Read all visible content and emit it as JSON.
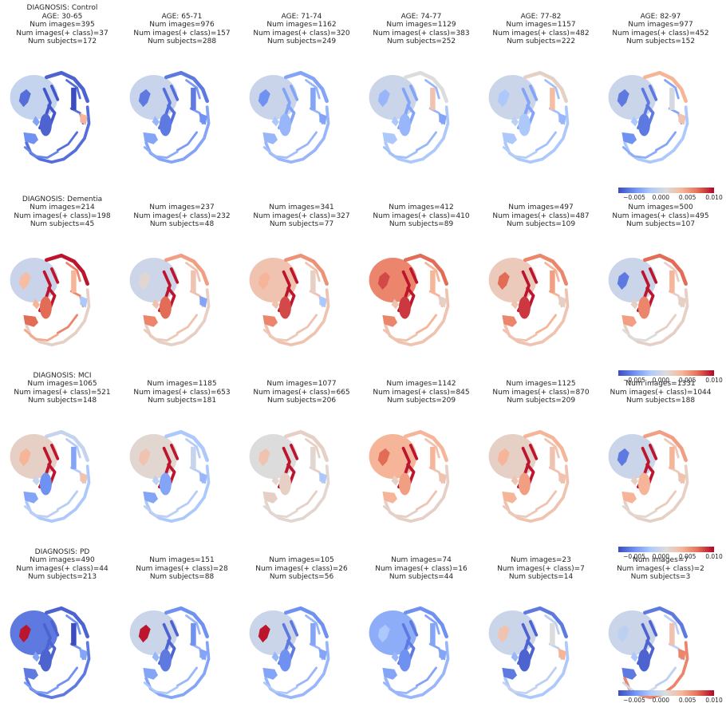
{
  "chart_data": {
    "type": "heatmap",
    "description_note": "",
    "colormap": "coolwarm",
    "colorbar": {
      "range": [
        -0.008,
        0.01
      ],
      "ticks": [
        "−0.005",
        "0.000",
        "0.005",
        "0.010"
      ],
      "tick_values": [
        -0.005,
        0.0,
        0.005,
        0.01
      ]
    },
    "rows": [
      {
        "diagnosis": "DIAGNOSIS: Control",
        "panels": [
          {
            "lines": [
              "DIAGNOSIS: Control",
              "AGE: 30-65",
              "Num images=395",
              "Num images(+ class)=37",
              "Num subjects=172"
            ],
            "regions": {
              "wm": -0.0006,
              "thal": -0.0075,
              "cn": -0.008,
              "put": -0.007,
              "cerebc": -0.0055,
              "cerebw": -0.0065,
              "cortex_a": -0.007,
              "cortex_p": -0.0065,
              "vent": -0.0065,
              "hipp": -0.005,
              "ant": 0.004,
              "hcc": -0.004
            }
          },
          {
            "lines": [
              "AGE: 65-71",
              "Num images=976",
              "Num images(+ class)=157",
              "Num subjects=288"
            ],
            "regions": {
              "wm": -0.0004,
              "thal": -0.0065,
              "cn": -0.006,
              "put": -0.006,
              "cerebc": -0.0035,
              "cerebw": -0.0045,
              "cortex_a": -0.006,
              "cortex_p": -0.004,
              "vent": -0.006,
              "hipp": -0.004,
              "ant": -0.005,
              "hcc": -0.003
            }
          },
          {
            "lines": [
              "AGE: 71-74",
              "Num images=1162",
              "Num images(+ class)=320",
              "Num subjects=249"
            ],
            "regions": {
              "wm": -0.0003,
              "thal": -0.004,
              "cn": -0.004,
              "put": -0.003,
              "cerebc": -0.0025,
              "cerebw": -0.003,
              "cortex_a": -0.004,
              "cortex_p": -0.003,
              "vent": -0.005,
              "hipp": -0.003,
              "ant": -0.004,
              "hcc": -0.002
            }
          },
          {
            "lines": [
              "AGE: 74-77",
              "Num images=1129",
              "Num images(+ class)=383",
              "Num subjects=252"
            ],
            "regions": {
              "wm": -0.0002,
              "thal": -0.004,
              "cn": 0.003,
              "put": -0.003,
              "cerebc": -0.0025,
              "cerebw": -0.003,
              "cortex_a": 0.001,
              "cortex_p": -0.002,
              "vent": -0.003,
              "hipp": -0.002,
              "ant": -0.004,
              "hcc": -0.002
            }
          },
          {
            "lines": [
              "AGE: 77-82",
              "Num images=1157",
              "Num images(+ class)=482",
              "Num subjects=222"
            ],
            "regions": {
              "wm": -0.0002,
              "thal": -0.004,
              "cn": 0.0035,
              "put": -0.002,
              "cerebc": -0.0015,
              "cerebw": -0.0025,
              "cortex_a": 0.002,
              "cortex_p": -0.002,
              "vent": -0.002,
              "hipp": -0.002,
              "ant": -0.003,
              "hcc": -0.001
            }
          },
          {
            "lines": [
              "AGE: 82-97",
              "Num images=977",
              "Num images(+ class)=452",
              "Num subjects=152"
            ],
            "regions": {
              "wm": -0.0002,
              "thal": -0.006,
              "cn": 0.0005,
              "put": -0.006,
              "cerebc": -0.0035,
              "cerebw": -0.004,
              "cortex_a": 0.004,
              "cortex_p": -0.002,
              "vent": -0.006,
              "hipp": -0.005,
              "ant": 0.003,
              "hcc": -0.002
            }
          }
        ],
        "colorbar": true
      },
      {
        "diagnosis": "DIAGNOSIS: Dementia",
        "panels": [
          {
            "lines": [
              "DIAGNOSIS: Dementia",
              "Num images=214",
              "Num images(+ class)=198",
              "Num subjects=45"
            ],
            "regions": {
              "wm": -0.0003,
              "thal": 0.0095,
              "cn": 0.004,
              "put": 0.007,
              "cerebc": 0.0045,
              "cerebw": 0.006,
              "cortex_a": 0.0095,
              "cortex_p": 0.002,
              "vent": 0.0035,
              "hipp": 0.007,
              "ant": -0.002,
              "hcc": 0.004
            }
          },
          {
            "lines": [
              "Num images=237",
              "Num images(+ class)=232",
              "Num subjects=48"
            ],
            "regions": {
              "wm": -0.0001,
              "thal": 0.0095,
              "cn": 0.003,
              "put": 0.007,
              "cerebc": 0.0025,
              "cerebw": 0.003,
              "cortex_a": 0.005,
              "cortex_p": 0.002,
              "vent": 0.0015,
              "hipp": 0.006,
              "ant": -0.004,
              "hcc": 0.003
            }
          },
          {
            "lines": [
              "Num images=341",
              "Num images(+ class)=327",
              "Num subjects=77"
            ],
            "regions": {
              "wm": 0.003,
              "thal": 0.0095,
              "cn": 0.002,
              "put": 0.008,
              "cerebc": 0.0025,
              "cerebw": 0.003,
              "cortex_a": 0.0055,
              "cortex_p": 0.003,
              "vent": 0.004,
              "hipp": 0.006,
              "ant": -0.002,
              "hcc": 0.003
            }
          },
          {
            "lines": [
              "Num images=412",
              "Num images(+ class)=410",
              "Num subjects=89"
            ],
            "regions": {
              "wm": 0.006,
              "thal": 0.0095,
              "cn": 0.004,
              "put": 0.0085,
              "cerebc": 0.003,
              "cerebw": 0.004,
              "cortex_a": 0.007,
              "cortex_p": 0.003,
              "vent": 0.008,
              "hipp": 0.006,
              "ant": 0.002,
              "hcc": 0.003
            }
          },
          {
            "lines": [
              "Num images=497",
              "Num images(+ class)=487",
              "Num subjects=109"
            ],
            "regions": {
              "wm": 0.0025,
              "thal": 0.0095,
              "cn": 0.005,
              "put": 0.0085,
              "cerebc": 0.003,
              "cerebw": 0.004,
              "cortex_a": 0.006,
              "cortex_p": 0.003,
              "vent": 0.007,
              "hipp": 0.006,
              "ant": 0.002,
              "hcc": 0.003
            }
          },
          {
            "lines": [
              "Num images=500",
              "Num images(+ class)=495",
              "Num subjects=107"
            ],
            "regions": {
              "wm": -0.0002,
              "thal": 0.0095,
              "cn": 0.004,
              "put": 0.006,
              "cerebc": 0.001,
              "cerebw": 0.002,
              "cortex_a": 0.007,
              "cortex_p": 0.002,
              "vent": -0.006,
              "hipp": 0.005,
              "ant": 0.002,
              "hcc": 0.002
            }
          }
        ],
        "colorbar": true
      },
      {
        "diagnosis": "DIAGNOSIS: MCI",
        "panels": [
          {
            "lines": [
              "DIAGNOSIS: MCI",
              "Num images=1065",
              "Num images(+ class)=521",
              "Num subjects=148"
            ],
            "regions": {
              "wm": 0.002,
              "thal": 0.0095,
              "cn": -0.004,
              "put": -0.005,
              "cerebc": -0.001,
              "cerebw": -0.0015,
              "cortex_a": -0.0005,
              "cortex_p": -0.002,
              "vent": 0.004,
              "hipp": -0.004,
              "ant": 0.003,
              "hcc": -0.0005
            }
          },
          {
            "lines": [
              "Num images=1185",
              "Num images(+ class)=653",
              "Num subjects=181"
            ],
            "regions": {
              "wm": 0.0015,
              "thal": 0.0095,
              "cn": -0.0005,
              "put": -0.004,
              "cerebc": -0.001,
              "cerebw": -0.0015,
              "cortex_a": -0.002,
              "cortex_p": -0.002,
              "vent": 0.003,
              "hipp": -0.004,
              "ant": -0.003,
              "hcc": -0.001
            }
          },
          {
            "lines": [
              "Num images=1077",
              "Num images(+ class)=665",
              "Num subjects=206"
            ],
            "regions": {
              "wm": 0.001,
              "thal": 0.0095,
              "cn": 0.0015,
              "put": 0.002,
              "cerebc": 0.0015,
              "cerebw": 0.002,
              "cortex_a": 0.002,
              "cortex_p": 0.0015,
              "vent": 0.003,
              "hipp": 0.002,
              "ant": -0.002,
              "hcc": 0.0015
            }
          },
          {
            "lines": [
              "Num images=1142",
              "Num images(+ class)=845",
              "Num subjects=209"
            ],
            "regions": {
              "wm": 0.004,
              "thal": 0.0095,
              "cn": 0.004,
              "put": 0.005,
              "cerebc": 0.002,
              "cerebw": 0.003,
              "cortex_a": 0.004,
              "cortex_p": 0.002,
              "vent": 0.007,
              "hipp": 0.004,
              "ant": 0.003,
              "hcc": 0.002
            }
          },
          {
            "lines": [
              "Num images=1125",
              "Num images(+ class)=870",
              "Num subjects=209"
            ],
            "regions": {
              "wm": 0.002,
              "thal": 0.0095,
              "cn": 0.003,
              "put": 0.005,
              "cerebc": 0.0025,
              "cerebw": 0.003,
              "cortex_a": 0.004,
              "cortex_p": 0.003,
              "vent": 0.004,
              "hipp": 0.004,
              "ant": 0.003,
              "hcc": 0.003
            }
          },
          {
            "lines": [
              "Num images=1331",
              "Num images(+ class)=1044",
              "Num subjects=188"
            ],
            "regions": {
              "wm": -0.0002,
              "thal": 0.0095,
              "cn": 0.004,
              "put": 0.004,
              "cerebc": 0.0015,
              "cerebw": 0.0025,
              "cortex_a": 0.005,
              "cortex_p": 0.002,
              "vent": -0.006,
              "hipp": 0.004,
              "ant": 0.003,
              "hcc": 0.002
            }
          }
        ],
        "colorbar": true
      },
      {
        "diagnosis": "DIAGNOSIS: PD",
        "panels": [
          {
            "lines": [
              "DIAGNOSIS: PD",
              "Num images=490",
              "Num images(+ class)=44",
              "Num subjects=213"
            ],
            "regions": {
              "wm": -0.006,
              "thal": -0.007,
              "cn": -0.008,
              "put": -0.007,
              "cerebc": -0.0045,
              "cerebw": -0.005,
              "cortex_a": -0.007,
              "cortex_p": -0.006,
              "vent": 0.0095,
              "hipp": -0.006,
              "ant": -0.004,
              "hcc": -0.004
            }
          },
          {
            "lines": [
              "Num images=151",
              "Num images(+ class)=28",
              "Num subjects=88"
            ],
            "regions": {
              "wm": -0.0002,
              "thal": -0.007,
              "cn": -0.005,
              "put": -0.006,
              "cerebc": -0.002,
              "cerebw": -0.003,
              "cortex_a": -0.005,
              "cortex_p": -0.004,
              "vent": 0.0095,
              "hipp": -0.004,
              "ant": -0.004,
              "hcc": -0.003
            }
          },
          {
            "lines": [
              "Num images=105",
              "Num images(+ class)=26",
              "Num subjects=56"
            ],
            "regions": {
              "wm": -0.0002,
              "thal": -0.006,
              "cn": -0.004,
              "put": -0.005,
              "cerebc": -0.002,
              "cerebw": -0.003,
              "cortex_a": -0.005,
              "cortex_p": -0.003,
              "vent": 0.0095,
              "hipp": -0.004,
              "ant": -0.004,
              "hcc": -0.003
            }
          },
          {
            "lines": [
              "Num images=74",
              "Num images(+ class)=16",
              "Num subjects=44"
            ],
            "regions": {
              "wm": -0.0035,
              "thal": -0.006,
              "cn": -0.004,
              "put": -0.005,
              "cerebc": -0.003,
              "cerebw": -0.004,
              "cortex_a": -0.005,
              "cortex_p": -0.003,
              "vent": -0.002,
              "hipp": -0.004,
              "ant": -0.004,
              "hcc": -0.003
            }
          },
          {
            "lines": [
              "Num images=23",
              "Num images(+ class)=7",
              "Num subjects=14"
            ],
            "regions": {
              "wm": -0.0002,
              "thal": -0.007,
              "cn": 0.001,
              "put": -0.007,
              "cerebc": -0.0005,
              "cerebw": -0.001,
              "cortex_a": -0.006,
              "cortex_p": -0.002,
              "vent": 0.003,
              "hipp": -0.006,
              "ant": 0.004,
              "hcc": -0.003
            }
          },
          {
            "lines": [
              "Num images=7",
              "Num images(+ class)=2",
              "Num subjects=3"
            ],
            "regions": {
              "wm": -0.0002,
              "thal": -0.007,
              "cn": 0.003,
              "put": -0.007,
              "cerebc": 0.0005,
              "cerebw": -0.001,
              "cortex_a": -0.006,
              "cortex_p": 0.006,
              "vent": -0.001,
              "hipp": -0.006,
              "ant": 0.006,
              "hcc": -0.002
            }
          }
        ],
        "colorbar": true
      }
    ]
  }
}
